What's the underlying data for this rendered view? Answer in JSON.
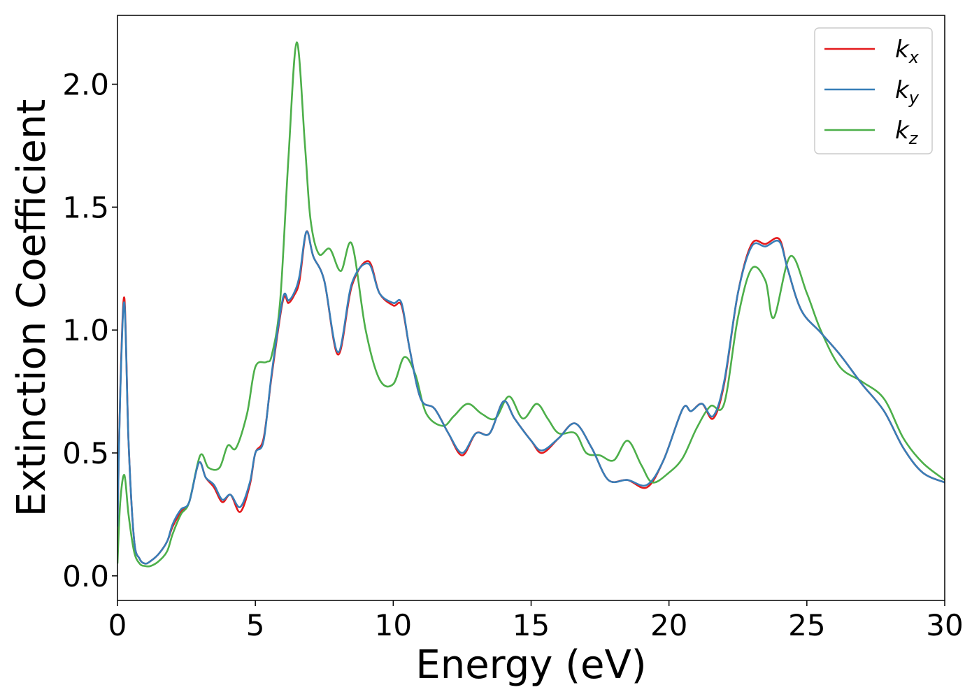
{
  "chart_data": {
    "type": "line",
    "xlabel": "Energy (eV)",
    "ylabel": "Extinction Coefficient",
    "xlim": [
      0,
      30
    ],
    "ylim": [
      -0.1,
      2.28
    ],
    "xticks": [
      0,
      5,
      10,
      15,
      20,
      25,
      30
    ],
    "xtick_labels": [
      "0",
      "5",
      "10",
      "15",
      "20",
      "25",
      "30"
    ],
    "yticks": [
      0.0,
      0.5,
      1.0,
      1.5,
      2.0
    ],
    "ytick_labels": [
      "0.0",
      "0.5",
      "1.0",
      "1.5",
      "2.0"
    ],
    "grid": false,
    "legend_position": "top-right",
    "series": [
      {
        "name": "k",
        "name_sub": "x",
        "color": "#e41a1c",
        "x": [
          0,
          0.1,
          0.25,
          0.4,
          0.6,
          0.8,
          1.0,
          1.2,
          1.5,
          1.8,
          2.0,
          2.3,
          2.6,
          2.95,
          3.2,
          3.5,
          3.8,
          4.1,
          4.45,
          4.8,
          5.0,
          5.3,
          5.6,
          6.0,
          6.2,
          6.4,
          6.6,
          6.85,
          7.1,
          7.5,
          8.0,
          8.5,
          9.1,
          9.5,
          10.0,
          10.3,
          10.6,
          11.0,
          11.5,
          12.0,
          12.5,
          13.0,
          13.5,
          14.0,
          14.4,
          15.0,
          15.4,
          16.0,
          16.6,
          17.2,
          17.8,
          18.5,
          19.2,
          19.8,
          20.5,
          20.8,
          21.2,
          21.6,
          22.0,
          22.5,
          23.0,
          23.5,
          24.0,
          24.3,
          24.8,
          25.5,
          26.2,
          27.0,
          27.8,
          28.5,
          29.2,
          30.0
        ],
        "values": [
          0.2,
          0.75,
          1.13,
          0.55,
          0.15,
          0.07,
          0.05,
          0.06,
          0.09,
          0.14,
          0.2,
          0.26,
          0.3,
          0.46,
          0.4,
          0.36,
          0.3,
          0.33,
          0.26,
          0.37,
          0.5,
          0.56,
          0.82,
          1.12,
          1.11,
          1.14,
          1.2,
          1.4,
          1.3,
          1.2,
          0.9,
          1.18,
          1.28,
          1.15,
          1.1,
          1.1,
          0.92,
          0.72,
          0.68,
          0.58,
          0.49,
          0.58,
          0.58,
          0.71,
          0.64,
          0.55,
          0.5,
          0.56,
          0.62,
          0.52,
          0.39,
          0.39,
          0.36,
          0.47,
          0.68,
          0.67,
          0.7,
          0.64,
          0.78,
          1.15,
          1.35,
          1.35,
          1.37,
          1.25,
          1.08,
          0.99,
          0.9,
          0.78,
          0.67,
          0.52,
          0.42,
          0.38
        ]
      },
      {
        "name": "k",
        "name_sub": "y",
        "color": "#377eb8",
        "x": [
          0,
          0.1,
          0.25,
          0.4,
          0.6,
          0.8,
          1.0,
          1.2,
          1.5,
          1.8,
          2.0,
          2.3,
          2.6,
          2.95,
          3.2,
          3.5,
          3.8,
          4.1,
          4.45,
          4.8,
          5.0,
          5.3,
          5.6,
          6.0,
          6.2,
          6.4,
          6.6,
          6.85,
          7.1,
          7.5,
          8.0,
          8.5,
          9.1,
          9.5,
          10.0,
          10.3,
          10.6,
          11.0,
          11.5,
          12.0,
          12.5,
          13.0,
          13.5,
          14.0,
          14.4,
          15.0,
          15.4,
          16.0,
          16.6,
          17.2,
          17.8,
          18.5,
          19.2,
          19.8,
          20.5,
          20.8,
          21.2,
          21.6,
          22.0,
          22.5,
          23.0,
          23.5,
          24.0,
          24.3,
          24.8,
          25.5,
          26.2,
          27.0,
          27.8,
          28.5,
          29.2,
          30.0
        ],
        "values": [
          0.2,
          0.74,
          1.11,
          0.55,
          0.15,
          0.07,
          0.05,
          0.06,
          0.09,
          0.14,
          0.21,
          0.27,
          0.3,
          0.46,
          0.4,
          0.37,
          0.31,
          0.33,
          0.28,
          0.38,
          0.5,
          0.55,
          0.83,
          1.13,
          1.12,
          1.15,
          1.22,
          1.4,
          1.3,
          1.2,
          0.91,
          1.19,
          1.27,
          1.15,
          1.11,
          1.11,
          0.92,
          0.72,
          0.68,
          0.58,
          0.5,
          0.58,
          0.58,
          0.71,
          0.64,
          0.55,
          0.51,
          0.56,
          0.62,
          0.52,
          0.39,
          0.39,
          0.37,
          0.47,
          0.68,
          0.67,
          0.7,
          0.65,
          0.79,
          1.15,
          1.34,
          1.34,
          1.36,
          1.25,
          1.08,
          0.99,
          0.9,
          0.78,
          0.67,
          0.52,
          0.42,
          0.38
        ]
      },
      {
        "name": "k",
        "name_sub": "z",
        "color": "#4daf4a",
        "x": [
          0,
          0.1,
          0.25,
          0.4,
          0.6,
          0.8,
          1.0,
          1.2,
          1.5,
          1.8,
          2.0,
          2.3,
          2.6,
          3.0,
          3.3,
          3.7,
          4.0,
          4.3,
          4.7,
          5.0,
          5.4,
          5.6,
          5.9,
          6.2,
          6.5,
          6.8,
          7.0,
          7.3,
          7.7,
          8.1,
          8.5,
          9.0,
          9.5,
          10.0,
          10.4,
          10.8,
          11.2,
          11.8,
          12.2,
          12.7,
          13.2,
          13.7,
          14.2,
          14.7,
          15.2,
          15.6,
          16.0,
          16.6,
          17.0,
          17.5,
          18.0,
          18.5,
          19.0,
          19.4,
          20.0,
          20.5,
          21.0,
          21.5,
          22.0,
          22.5,
          23.0,
          23.5,
          23.8,
          24.4,
          25.0,
          25.5,
          26.2,
          27.0,
          27.8,
          28.5,
          29.2,
          30.0
        ],
        "values": [
          0.05,
          0.3,
          0.41,
          0.25,
          0.1,
          0.05,
          0.04,
          0.04,
          0.06,
          0.1,
          0.17,
          0.25,
          0.3,
          0.49,
          0.44,
          0.44,
          0.53,
          0.52,
          0.66,
          0.85,
          0.87,
          0.9,
          1.12,
          1.7,
          2.17,
          1.75,
          1.45,
          1.31,
          1.33,
          1.24,
          1.35,
          1.0,
          0.8,
          0.78,
          0.89,
          0.82,
          0.66,
          0.61,
          0.65,
          0.7,
          0.66,
          0.64,
          0.73,
          0.64,
          0.7,
          0.64,
          0.58,
          0.58,
          0.5,
          0.49,
          0.47,
          0.55,
          0.45,
          0.38,
          0.42,
          0.48,
          0.6,
          0.69,
          0.7,
          1.05,
          1.25,
          1.2,
          1.05,
          1.3,
          1.15,
          1.0,
          0.85,
          0.79,
          0.72,
          0.56,
          0.46,
          0.39
        ]
      }
    ]
  }
}
